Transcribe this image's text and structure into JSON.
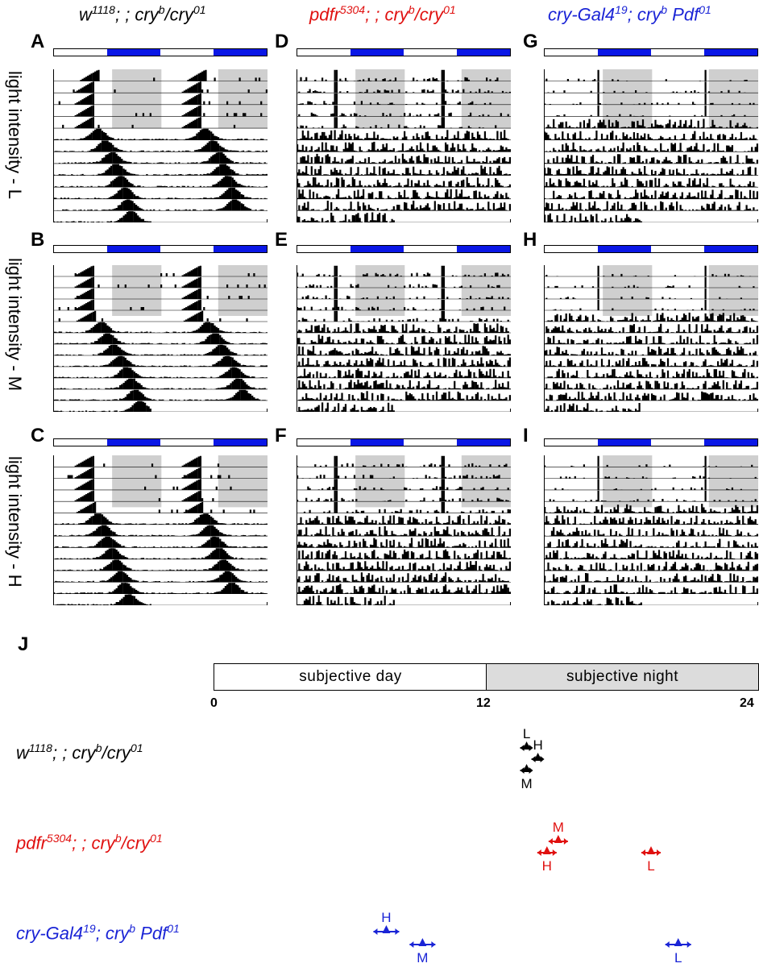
{
  "columns": [
    {
      "id": "wt",
      "color": "#000000",
      "parts": [
        [
          "w",
          "1118"
        ],
        [
          "; ; cry",
          ""
        ],
        [
          "b",
          ""
        ],
        [
          "/cry",
          ""
        ],
        [
          "01",
          ""
        ]
      ]
    },
    {
      "id": "pdfr",
      "color": "#e0100f",
      "parts": [
        [
          "pdfr",
          "5304"
        ],
        [
          "; ; cry",
          "b"
        ],
        [
          "/cry",
          "01"
        ]
      ]
    },
    {
      "id": "crygal",
      "color": "#1a24d6",
      "parts": [
        [
          "cry-Gal4",
          "19"
        ],
        [
          "; cry",
          "b"
        ],
        [
          " Pdf",
          "01"
        ]
      ]
    }
  ],
  "genotypes": [
    {
      "base": "w",
      "sup": "1118",
      "rest": "; ; cry",
      "sup2": "b",
      "rest2": "/cry",
      "sup3": "01",
      "color": "#000000"
    },
    {
      "base": "pdfr",
      "sup": "5304",
      "rest": "; ; cry",
      "sup2": "b",
      "rest2": "/cry",
      "sup3": "01",
      "color": "#e0100f"
    },
    {
      "base": "cry-Gal4",
      "sup": "19",
      "rest": "; cry",
      "sup2": "b",
      "rest2": " Pdf",
      "sup3": "01",
      "color": "#1a24d6"
    }
  ],
  "panel_letters": [
    "A",
    "B",
    "C",
    "D",
    "E",
    "F",
    "G",
    "H",
    "I",
    "J"
  ],
  "row_labels": [
    "light intensity - L",
    "light intensity - M",
    "light intensity - H"
  ],
  "colors": {
    "dark_phase": "#0a17e6",
    "shade": "#cfcfcf",
    "red": "#e0100f",
    "blue": "#1a24d6"
  },
  "axis": {
    "day_label": "subjective day",
    "night_label": "subjective night",
    "ticks": [
      "0",
      "12",
      "24"
    ],
    "range": [
      0,
      24
    ]
  },
  "phase_markers": [
    {
      "genotype": 0,
      "letter": "L",
      "time": 13.8,
      "row": 0,
      "label_pos": "above"
    },
    {
      "genotype": 0,
      "letter": "H",
      "time": 14.3,
      "row": 1,
      "label_pos": "above"
    },
    {
      "genotype": 0,
      "letter": "M",
      "time": 13.8,
      "row": 2,
      "label_pos": "below"
    },
    {
      "genotype": 1,
      "letter": "M",
      "time": 15.2,
      "row": 0,
      "label_pos": "above"
    },
    {
      "genotype": 1,
      "letter": "H",
      "time": 14.7,
      "row": 1,
      "label_pos": "below"
    },
    {
      "genotype": 1,
      "letter": "L",
      "time": 19.3,
      "row": 1,
      "label_pos": "below"
    },
    {
      "genotype": 2,
      "letter": "H",
      "time": 7.6,
      "row": 0,
      "label_pos": "above"
    },
    {
      "genotype": 2,
      "letter": "M",
      "time": 9.2,
      "row": 1,
      "label_pos": "below"
    },
    {
      "genotype": 2,
      "letter": "L",
      "time": 20.5,
      "row": 1,
      "label_pos": "below"
    }
  ]
}
